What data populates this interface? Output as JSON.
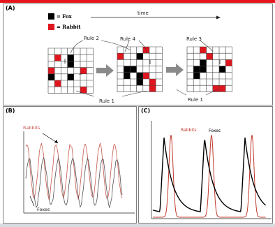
{
  "panel_a": {
    "label": "(A)",
    "legend": [
      {
        "label": "= Fox",
        "color": "#000000"
      },
      {
        "label": "= Rabbit",
        "color": "#e0161e"
      }
    ],
    "time_label": "time",
    "rules": [
      "Rule 2",
      "Rule 4",
      "Rule 3",
      "Rule 1",
      "Rule 1"
    ]
  },
  "panel_b": {
    "label": "(B)",
    "rabbits_label": "Rabbits",
    "foxes_label": "Foxes",
    "rabbit_color": "#c8584e",
    "fox_color": "#505050"
  },
  "panel_c": {
    "label": "(C)",
    "rabbits_label": "Rabbits",
    "foxes_label": "Foxes",
    "rabbit_color": "#c0392b",
    "fox_color": "#000000"
  }
}
